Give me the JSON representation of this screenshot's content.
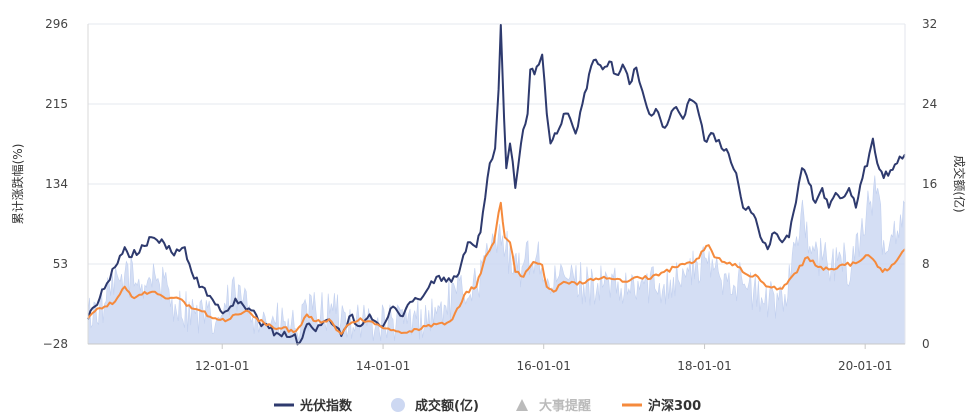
{
  "chart_data": {
    "type": "line",
    "x_range": [
      "2010-05-01",
      "2020-06-30"
    ],
    "x_tick_labels": [
      "12-01-01",
      "14-01-01",
      "16-01-01",
      "18-01-01",
      "20-01-01"
    ],
    "x_tick_dates": [
      "2012-01-01",
      "2014-01-01",
      "2016-01-01",
      "2018-01-01",
      "2020-01-01"
    ],
    "y_left": {
      "label": "累计涨跌幅(%)",
      "ticks": [
        -28,
        53,
        134,
        215,
        296
      ],
      "range": [
        -28,
        296
      ]
    },
    "y_right": {
      "label": "成交额(亿)",
      "ticks": [
        0,
        8,
        16,
        24,
        32
      ],
      "range": [
        0,
        32
      ]
    },
    "grid": "horizontal",
    "legend_position": "bottom",
    "legend": [
      {
        "name": "光伏指数",
        "color": "#2e3a6e",
        "shape": "line",
        "muted": false
      },
      {
        "name": "成交额(亿)",
        "color": "#cdd8f2",
        "shape": "circle",
        "muted": false
      },
      {
        "name": "大事提醒",
        "color": "#bbbbbb",
        "shape": "triangle",
        "muted": true
      },
      {
        "name": "沪深300",
        "color": "#f58a3c",
        "shape": "line",
        "muted": false
      }
    ],
    "series": [
      {
        "name": "光伏指数",
        "axis": "left",
        "color": "#2e3a6e",
        "points": [
          [
            "2010-05-01",
            -3
          ],
          [
            "2010-06-01",
            10
          ],
          [
            "2010-07-15",
            28
          ],
          [
            "2010-09-01",
            50
          ],
          [
            "2010-10-15",
            70
          ],
          [
            "2010-11-15",
            60
          ],
          [
            "2011-01-01",
            72
          ],
          [
            "2011-02-15",
            80
          ],
          [
            "2011-04-01",
            78
          ],
          [
            "2011-05-15",
            65
          ],
          [
            "2011-07-15",
            70
          ],
          [
            "2011-08-15",
            45
          ],
          [
            "2011-10-01",
            30
          ],
          [
            "2011-12-01",
            12
          ],
          [
            "2012-01-15",
            5
          ],
          [
            "2012-03-01",
            18
          ],
          [
            "2012-05-01",
            8
          ],
          [
            "2012-06-15",
            -5
          ],
          [
            "2012-08-01",
            -12
          ],
          [
            "2012-09-15",
            -18
          ],
          [
            "2012-11-15",
            -20
          ],
          [
            "2012-12-20",
            -26
          ],
          [
            "2013-01-20",
            -8
          ],
          [
            "2013-03-01",
            -15
          ],
          [
            "2013-05-01",
            -3
          ],
          [
            "2013-06-25",
            -20
          ],
          [
            "2013-08-01",
            0
          ],
          [
            "2013-09-20",
            -10
          ],
          [
            "2013-11-01",
            2
          ],
          [
            "2014-01-01",
            -10
          ],
          [
            "2014-02-15",
            10
          ],
          [
            "2014-04-01",
            0
          ],
          [
            "2014-05-15",
            15
          ],
          [
            "2014-07-15",
            25
          ],
          [
            "2014-09-01",
            40
          ],
          [
            "2014-10-15",
            35
          ],
          [
            "2014-12-01",
            40
          ],
          [
            "2015-01-01",
            62
          ],
          [
            "2015-02-01",
            75
          ],
          [
            "2015-03-01",
            70
          ],
          [
            "2015-03-20",
            85
          ],
          [
            "2015-04-10",
            120
          ],
          [
            "2015-05-01",
            155
          ],
          [
            "2015-05-25",
            170
          ],
          [
            "2015-06-10",
            230
          ],
          [
            "2015-06-20",
            295
          ],
          [
            "2015-07-05",
            200
          ],
          [
            "2015-07-15",
            150
          ],
          [
            "2015-08-01",
            175
          ],
          [
            "2015-08-25",
            130
          ],
          [
            "2015-09-20",
            175
          ],
          [
            "2015-10-20",
            205
          ],
          [
            "2015-11-01",
            250
          ],
          [
            "2015-11-20",
            245
          ],
          [
            "2015-12-10",
            255
          ],
          [
            "2015-12-25",
            265
          ],
          [
            "2016-01-15",
            205
          ],
          [
            "2016-02-01",
            175
          ],
          [
            "2016-03-01",
            185
          ],
          [
            "2016-04-01",
            205
          ],
          [
            "2016-05-01",
            200
          ],
          [
            "2016-05-25",
            185
          ],
          [
            "2016-06-25",
            215
          ],
          [
            "2016-07-25",
            245
          ],
          [
            "2016-08-25",
            260
          ],
          [
            "2016-09-25",
            250
          ],
          [
            "2016-10-25",
            258
          ],
          [
            "2016-11-25",
            245
          ],
          [
            "2016-12-25",
            255
          ],
          [
            "2017-01-25",
            235
          ],
          [
            "2017-02-25",
            252
          ],
          [
            "2017-03-25",
            228
          ],
          [
            "2017-04-25",
            205
          ],
          [
            "2017-05-25",
            210
          ],
          [
            "2017-06-25",
            192
          ],
          [
            "2017-07-25",
            200
          ],
          [
            "2017-08-25",
            212
          ],
          [
            "2017-09-25",
            200
          ],
          [
            "2017-10-25",
            220
          ],
          [
            "2017-11-25",
            215
          ],
          [
            "2018-01-01",
            178
          ],
          [
            "2018-02-10",
            185
          ],
          [
            "2018-03-20",
            170
          ],
          [
            "2018-04-20",
            165
          ],
          [
            "2018-05-25",
            145
          ],
          [
            "2018-06-25",
            110
          ],
          [
            "2018-08-01",
            105
          ],
          [
            "2018-09-01",
            90
          ],
          [
            "2018-10-15",
            68
          ],
          [
            "2018-11-15",
            85
          ],
          [
            "2018-12-20",
            75
          ],
          [
            "2019-01-20",
            80
          ],
          [
            "2019-02-20",
            115
          ],
          [
            "2019-03-20",
            150
          ],
          [
            "2019-04-20",
            135
          ],
          [
            "2019-05-20",
            115
          ],
          [
            "2019-06-20",
            130
          ],
          [
            "2019-07-20",
            110
          ],
          [
            "2019-08-20",
            125
          ],
          [
            "2019-09-20",
            120
          ],
          [
            "2019-10-20",
            130
          ],
          [
            "2019-11-20",
            110
          ],
          [
            "2019-12-20",
            140
          ],
          [
            "2020-01-20",
            165
          ],
          [
            "2020-02-05",
            180
          ],
          [
            "2020-02-25",
            155
          ],
          [
            "2020-03-25",
            140
          ],
          [
            "2020-04-25",
            148
          ],
          [
            "2020-05-25",
            155
          ],
          [
            "2020-06-30",
            164
          ]
        ]
      },
      {
        "name": "沪深300",
        "axis": "left",
        "color": "#f58a3c",
        "points": [
          [
            "2010-05-01",
            -2
          ],
          [
            "2010-06-01",
            5
          ],
          [
            "2010-07-15",
            10
          ],
          [
            "2010-09-01",
            15
          ],
          [
            "2010-10-15",
            30
          ],
          [
            "2010-11-15",
            20
          ],
          [
            "2011-01-01",
            22
          ],
          [
            "2011-03-01",
            25
          ],
          [
            "2011-05-01",
            18
          ],
          [
            "2011-07-01",
            17
          ],
          [
            "2011-08-15",
            8
          ],
          [
            "2011-10-01",
            5
          ],
          [
            "2011-12-01",
            -2
          ],
          [
            "2012-01-15",
            -5
          ],
          [
            "2012-03-01",
            2
          ],
          [
            "2012-05-01",
            5
          ],
          [
            "2012-06-15",
            -5
          ],
          [
            "2012-08-01",
            -8
          ],
          [
            "2012-09-15",
            -12
          ],
          [
            "2012-12-01",
            -15
          ],
          [
            "2013-01-20",
            2
          ],
          [
            "2013-03-01",
            -5
          ],
          [
            "2013-05-01",
            -3
          ],
          [
            "2013-06-25",
            -18
          ],
          [
            "2013-08-01",
            -8
          ],
          [
            "2013-09-20",
            -2
          ],
          [
            "2013-11-01",
            -5
          ],
          [
            "2014-01-01",
            -12
          ],
          [
            "2014-03-01",
            -15
          ],
          [
            "2014-05-01",
            -15
          ],
          [
            "2014-07-15",
            -10
          ],
          [
            "2014-09-01",
            -8
          ],
          [
            "2014-11-01",
            -5
          ],
          [
            "2014-12-15",
            10
          ],
          [
            "2015-01-15",
            25
          ],
          [
            "2015-03-01",
            30
          ],
          [
            "2015-04-10",
            60
          ],
          [
            "2015-05-20",
            75
          ],
          [
            "2015-06-10",
            105
          ],
          [
            "2015-06-20",
            115
          ],
          [
            "2015-07-08",
            80
          ],
          [
            "2015-08-01",
            75
          ],
          [
            "2015-08-25",
            45
          ],
          [
            "2015-10-01",
            40
          ],
          [
            "2015-11-15",
            55
          ],
          [
            "2015-12-25",
            52
          ],
          [
            "2016-01-15",
            30
          ],
          [
            "2016-02-15",
            25
          ],
          [
            "2016-04-01",
            35
          ],
          [
            "2016-06-01",
            32
          ],
          [
            "2016-08-01",
            38
          ],
          [
            "2016-10-01",
            40
          ],
          [
            "2016-12-01",
            38
          ],
          [
            "2017-01-15",
            35
          ],
          [
            "2017-03-01",
            40
          ],
          [
            "2017-05-01",
            38
          ],
          [
            "2017-07-01",
            45
          ],
          [
            "2017-09-01",
            50
          ],
          [
            "2017-11-15",
            55
          ],
          [
            "2018-01-20",
            72
          ],
          [
            "2018-02-15",
            60
          ],
          [
            "2018-04-01",
            55
          ],
          [
            "2018-06-01",
            50
          ],
          [
            "2018-07-15",
            42
          ],
          [
            "2018-09-01",
            40
          ],
          [
            "2018-10-20",
            30
          ],
          [
            "2018-12-20",
            28
          ],
          [
            "2019-02-01",
            40
          ],
          [
            "2019-04-15",
            60
          ],
          [
            "2019-06-01",
            50
          ],
          [
            "2019-08-01",
            48
          ],
          [
            "2019-10-01",
            52
          ],
          [
            "2019-12-01",
            55
          ],
          [
            "2020-01-15",
            62
          ],
          [
            "2020-02-05",
            58
          ],
          [
            "2020-03-20",
            45
          ],
          [
            "2020-05-01",
            52
          ],
          [
            "2020-06-30",
            68
          ]
        ]
      },
      {
        "name": "成交额(亿)",
        "axis": "right",
        "color": "#cdd8f2",
        "type": "area",
        "points": [
          [
            "2010-05-01",
            3
          ],
          [
            "2010-07-15",
            4
          ],
          [
            "2010-10-15",
            7
          ],
          [
            "2011-01-01",
            6
          ],
          [
            "2011-03-01",
            7
          ],
          [
            "2011-06-01",
            4
          ],
          [
            "2011-09-01",
            3
          ],
          [
            "2011-12-01",
            2
          ],
          [
            "2012-03-01",
            5
          ],
          [
            "2012-06-01",
            3
          ],
          [
            "2012-09-01",
            2
          ],
          [
            "2012-12-01",
            1.5
          ],
          [
            "2013-03-01",
            3.5
          ],
          [
            "2013-06-01",
            3
          ],
          [
            "2013-09-01",
            2.5
          ],
          [
            "2013-12-01",
            2
          ],
          [
            "2014-03-01",
            2
          ],
          [
            "2014-06-01",
            2.5
          ],
          [
            "2014-09-01",
            3
          ],
          [
            "2014-12-01",
            5
          ],
          [
            "2015-03-01",
            6
          ],
          [
            "2015-05-01",
            9
          ],
          [
            "2015-06-15",
            12
          ],
          [
            "2015-08-15",
            7
          ],
          [
            "2015-10-01",
            8
          ],
          [
            "2015-12-01",
            9
          ],
          [
            "2016-02-01",
            5
          ],
          [
            "2016-04-01",
            7
          ],
          [
            "2016-07-01",
            6
          ],
          [
            "2016-10-01",
            6
          ],
          [
            "2017-01-01",
            5
          ],
          [
            "2017-04-01",
            6
          ],
          [
            "2017-07-01",
            6
          ],
          [
            "2017-10-01",
            7
          ],
          [
            "2018-01-15",
            8
          ],
          [
            "2018-04-01",
            7
          ],
          [
            "2018-07-01",
            6
          ],
          [
            "2018-10-01",
            4
          ],
          [
            "2019-01-01",
            5
          ],
          [
            "2019-03-15",
            13
          ],
          [
            "2019-05-01",
            9
          ],
          [
            "2019-08-01",
            8
          ],
          [
            "2019-11-01",
            8
          ],
          [
            "2020-01-20",
            14
          ],
          [
            "2020-02-20",
            15
          ],
          [
            "2020-04-01",
            9
          ],
          [
            "2020-06-30",
            14
          ]
        ]
      }
    ]
  }
}
